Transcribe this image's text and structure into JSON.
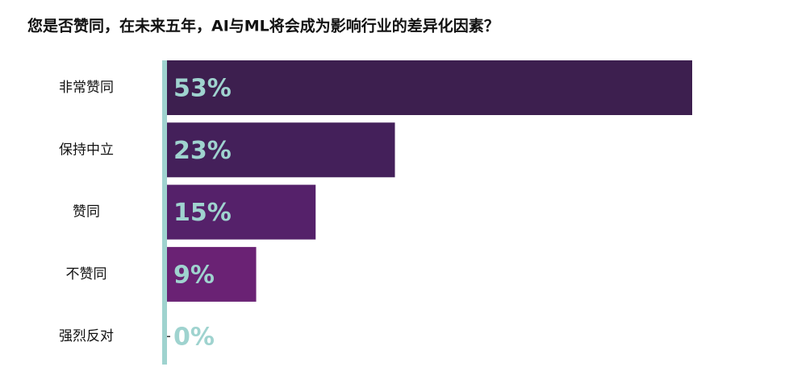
{
  "chart_data": {
    "type": "bar",
    "orientation": "horizontal",
    "title": "您是否赞同，在未来五年，AI与ML将会成为影响行业的差异化因素？",
    "categories": [
      "非常赞同",
      "保持中立",
      "赞同",
      "不赞同",
      "强烈反对"
    ],
    "values": [
      53,
      23,
      15,
      9,
      0
    ],
    "value_labels": [
      "53%",
      "23%",
      "15%",
      "9%",
      "0%"
    ],
    "colors": [
      "#3d1f4f",
      "#44205a",
      "#55216a",
      "#6a2274",
      "#6a2274"
    ],
    "label_color": "#9fd3cf",
    "axis_color": "#9fd3cf"
  }
}
